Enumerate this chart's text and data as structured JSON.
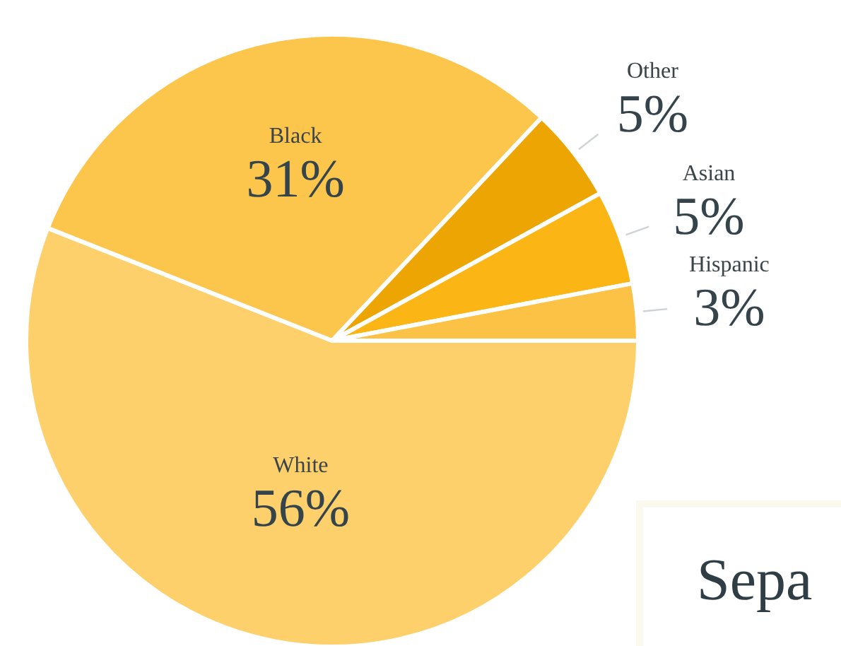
{
  "chart_data": {
    "type": "pie",
    "categories": [
      "White",
      "Black",
      "Other",
      "Asian",
      "Hispanic"
    ],
    "values": [
      56,
      31,
      5,
      5,
      3
    ],
    "value_labels": [
      "56%",
      "31%",
      "5%",
      "5%",
      "3%"
    ],
    "colors": [
      "#fdd06b",
      "#fcc54c",
      "#eda503",
      "#fbb615",
      "#fcc246"
    ],
    "annotations": [
      "Sepa"
    ],
    "legend": false
  }
}
